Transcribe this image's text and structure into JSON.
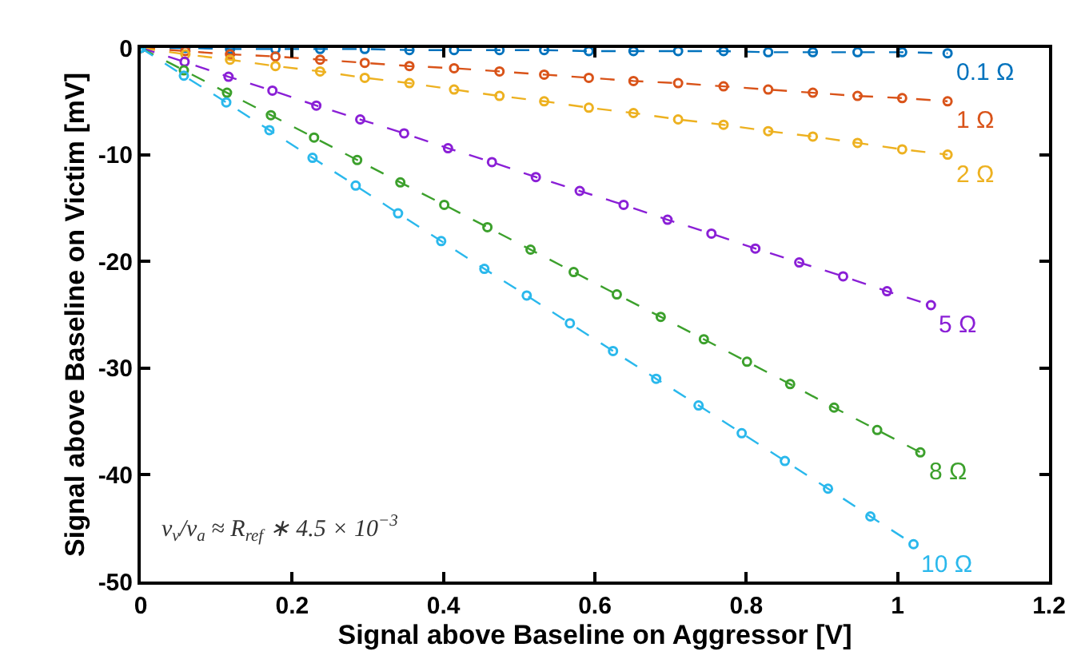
{
  "chart_data": {
    "type": "line",
    "xlabel": "Signal above Baseline on Aggressor [V]",
    "ylabel": "Signal above Baseline on Victim [mV]",
    "xlim": [
      0,
      1.2
    ],
    "xticks": [
      0,
      0.2,
      0.4,
      0.6,
      0.8,
      1,
      1.2
    ],
    "ylim": [
      -50,
      0
    ],
    "yticks": [
      -50,
      -40,
      -30,
      -20,
      -10,
      0
    ],
    "legend": false,
    "marker": "circle",
    "line_style": "dashed",
    "annotations": [
      "v$_{v}$/v$_{a}$ ≈ R$_{ref}$ ∗ 4.5 × 10$^{−3}$"
    ],
    "series": [
      {
        "name": "0.1 Ω",
        "color": "#0072bd",
        "x": [
          0,
          0.059,
          0.118,
          0.178,
          0.237,
          0.296,
          0.355,
          0.414,
          0.474,
          0.533,
          0.592,
          0.651,
          0.71,
          0.77,
          0.829,
          0.888,
          0.947,
          1.006,
          1.066
        ],
        "values": [
          0,
          0,
          -0.1,
          -0.1,
          -0.1,
          -0.1,
          -0.2,
          -0.2,
          -0.2,
          -0.2,
          -0.3,
          -0.3,
          -0.3,
          -0.3,
          -0.4,
          -0.4,
          -0.4,
          -0.4,
          -0.5
        ]
      },
      {
        "name": "1 Ω",
        "color": "#d95319",
        "x": [
          0,
          0.059,
          0.118,
          0.178,
          0.237,
          0.296,
          0.355,
          0.414,
          0.474,
          0.533,
          0.592,
          0.651,
          0.71,
          0.77,
          0.829,
          0.888,
          0.947,
          1.006,
          1.066
        ],
        "values": [
          0,
          -0.3,
          -0.6,
          -0.8,
          -1.1,
          -1.4,
          -1.7,
          -1.9,
          -2.2,
          -2.5,
          -2.8,
          -3.1,
          -3.3,
          -3.6,
          -3.9,
          -4.2,
          -4.5,
          -4.7,
          -5.0
        ]
      },
      {
        "name": "2 Ω",
        "color": "#edb120",
        "x": [
          0,
          0.059,
          0.118,
          0.178,
          0.237,
          0.296,
          0.355,
          0.414,
          0.474,
          0.533,
          0.592,
          0.651,
          0.71,
          0.77,
          0.829,
          0.888,
          0.947,
          1.006,
          1.066
        ],
        "values": [
          0,
          -0.6,
          -1.1,
          -1.7,
          -2.2,
          -2.8,
          -3.3,
          -3.9,
          -4.5,
          -5.0,
          -5.6,
          -6.1,
          -6.7,
          -7.2,
          -7.8,
          -8.3,
          -8.9,
          -9.5,
          -10.0
        ]
      },
      {
        "name": "5 Ω",
        "color": "#8a1fd6",
        "x": [
          0,
          0.058,
          0.116,
          0.174,
          0.232,
          0.29,
          0.348,
          0.406,
          0.464,
          0.522,
          0.58,
          0.638,
          0.696,
          0.754,
          0.812,
          0.87,
          0.928,
          0.986,
          1.044
        ],
        "values": [
          0,
          -1.3,
          -2.7,
          -4.0,
          -5.4,
          -6.7,
          -8.0,
          -9.4,
          -10.7,
          -12.1,
          -13.4,
          -14.7,
          -16.1,
          -17.4,
          -18.8,
          -20.1,
          -21.4,
          -22.8,
          -24.1
        ]
      },
      {
        "name": "8 Ω",
        "color": "#3ca02c",
        "x": [
          0,
          0.057,
          0.114,
          0.172,
          0.229,
          0.286,
          0.343,
          0.401,
          0.458,
          0.515,
          0.572,
          0.629,
          0.687,
          0.744,
          0.801,
          0.858,
          0.916,
          0.973,
          1.03
        ],
        "values": [
          0,
          -2.1,
          -4.2,
          -6.3,
          -8.4,
          -10.5,
          -12.6,
          -14.7,
          -16.8,
          -18.9,
          -21.0,
          -23.1,
          -25.2,
          -27.3,
          -29.4,
          -31.5,
          -33.7,
          -35.8,
          -37.9
        ]
      },
      {
        "name": "10 Ω",
        "color": "#2ab8ec",
        "x": [
          0,
          0.057,
          0.113,
          0.17,
          0.227,
          0.284,
          0.34,
          0.397,
          0.454,
          0.51,
          0.567,
          0.624,
          0.681,
          0.737,
          0.794,
          0.851,
          0.908,
          0.964,
          1.021
        ],
        "values": [
          0,
          -2.6,
          -5.1,
          -7.7,
          -10.3,
          -12.9,
          -15.5,
          -18.1,
          -20.7,
          -23.2,
          -25.8,
          -28.4,
          -31.0,
          -33.5,
          -36.1,
          -38.7,
          -41.3,
          -43.9,
          -46.5
        ]
      }
    ]
  }
}
